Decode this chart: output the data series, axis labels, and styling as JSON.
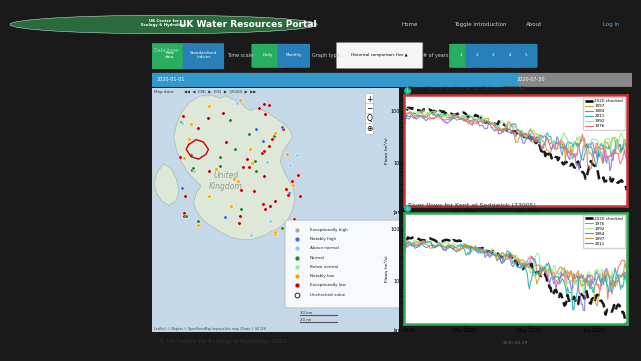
{
  "title": "UK Water Resources Portal",
  "logo_text": "UK Centre for\nEcology & Hydrology",
  "nav_items": [
    "Home",
    "Toggle introduction",
    "About"
  ],
  "data_type_btns": [
    [
      "Raw\ndata",
      "#27ae60"
    ],
    [
      "Standardised\nindices",
      "#2980b9"
    ]
  ],
  "time_scale_btns": [
    [
      "Daily",
      "#27ae60"
    ],
    [
      "Monthly",
      "#2980b9"
    ]
  ],
  "graph_type": "Historical comparison: five ▲",
  "n_years": [
    "1",
    "2",
    "3",
    "4",
    "5"
  ],
  "n_years_colors": [
    "#27ae60",
    "#2980b9",
    "#2980b9",
    "#2980b9",
    "#2980b9"
  ],
  "date_start": "2020-01-01",
  "date_end": "2020-07-30",
  "date_label": "2020-08-09",
  "chart1": {
    "title": "River flows for Lune at Caton (72004)",
    "border_color": "#cc3333",
    "legend": [
      "2020 checked",
      "1997",
      "1984",
      "2011",
      "1992",
      "1976"
    ],
    "line_colors": [
      "#000000",
      "#c8a030",
      "#9370db",
      "#20b2aa",
      "#90ee90",
      "#ff6b6b"
    ],
    "line_styles": [
      "--",
      "-",
      "-",
      "-",
      "-",
      "-"
    ],
    "line_widths": [
      1.8,
      0.8,
      0.8,
      0.8,
      0.8,
      0.8
    ],
    "ylabel": "Flows (m³/s)"
  },
  "chart2": {
    "title": "River flows for Kent at Sedgwick (73005)",
    "border_color": "#33aa55",
    "legend": [
      "2020 checked",
      "1976",
      "1992",
      "1984",
      "1997",
      "2011"
    ],
    "line_colors": [
      "#000000",
      "#ff6b6b",
      "#90ee90",
      "#9370db",
      "#c8a030",
      "#20b2aa"
    ],
    "line_styles": [
      "--",
      "-",
      "-",
      "-",
      "-",
      "-"
    ],
    "line_widths": [
      1.8,
      0.8,
      0.8,
      0.8,
      0.8,
      0.8
    ],
    "ylabel": "Flows (m³/s)"
  },
  "map_legend": [
    {
      "label": "Exceptionally high",
      "color": "#aaaaaa"
    },
    {
      "label": "Notably high",
      "color": "#4169e1"
    },
    {
      "label": "Above normal",
      "color": "#87ceeb"
    },
    {
      "label": "Normal",
      "color": "#228b22"
    },
    {
      "label": "Below normal",
      "color": "#90ee90"
    },
    {
      "label": "Notably low",
      "color": "#ffa500"
    },
    {
      "label": "Exceptionally low",
      "color": "#cc0000"
    },
    {
      "label": "Unchecked value",
      "color": "#ffffff"
    }
  ],
  "header_bg": "#222222",
  "toolbar_bg": "#3a3a3a",
  "footer_bg": "#e8e8e8",
  "footer_text": "© UK Centre for Ecology & Hydrology 2020"
}
